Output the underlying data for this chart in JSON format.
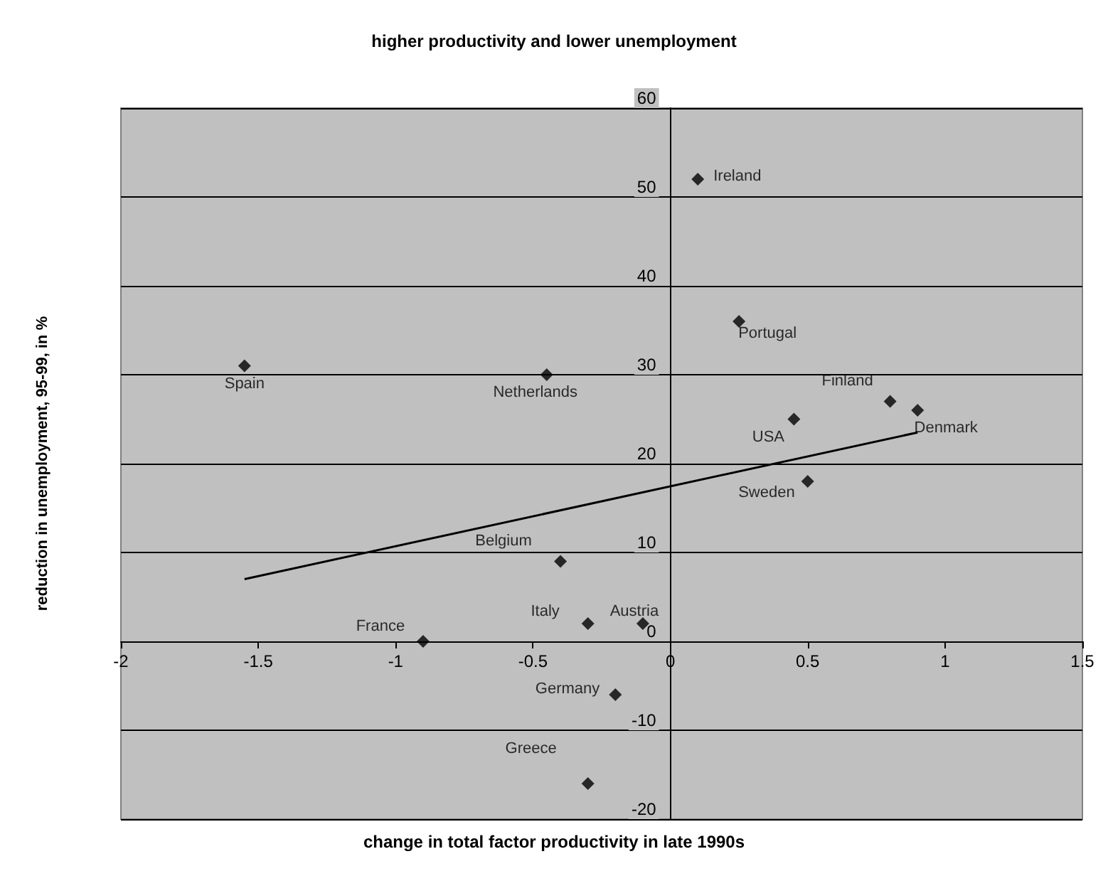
{
  "chart_data": {
    "type": "scatter",
    "title": "higher productivity and lower unemployment",
    "xlabel": "change in total factor productivity in late 1990s",
    "ylabel": "reduction in unemployment, 95-99, in %",
    "xlim": [
      -2,
      1.5
    ],
    "xticks": [
      -2,
      -1.5,
      -1,
      -0.5,
      0,
      0.5,
      1,
      1.5
    ],
    "ylim": [
      -20,
      60
    ],
    "yticks": [
      -20,
      -10,
      0,
      10,
      20,
      30,
      40,
      50,
      60
    ],
    "grid": "y",
    "marker": "diamond",
    "series": [
      {
        "type": "scatter",
        "color": "#000000",
        "x": [
          -1.55,
          -0.45,
          -0.4,
          -0.3,
          -0.1,
          -0.9,
          0.1,
          0.25,
          0.45,
          0.8,
          0.9,
          0.5,
          -0.2,
          -0.3
        ],
        "values": [
          31,
          30,
          9,
          2,
          2,
          0,
          52,
          36,
          25,
          27,
          26,
          18,
          -6,
          -16
        ]
      },
      {
        "type": "line",
        "color": "#000000",
        "marker": "none",
        "x": [
          -1.55,
          0.9
        ],
        "values": [
          7,
          23.5
        ]
      }
    ],
    "annotations": [
      {
        "text": "Spain",
        "x": -1.55,
        "y": 31
      },
      {
        "text": "Netherlands",
        "x": -0.45,
        "y": 30
      },
      {
        "text": "Belgium",
        "x": -0.4,
        "y": 9
      },
      {
        "text": "Italy",
        "x": -0.3,
        "y": 2
      },
      {
        "text": "Austria",
        "x": -0.1,
        "y": 2
      },
      {
        "text": "France",
        "x": -0.9,
        "y": 0
      },
      {
        "text": "Ireland",
        "x": 0.1,
        "y": 52
      },
      {
        "text": "Portugal",
        "x": 0.25,
        "y": 36
      },
      {
        "text": "USA",
        "x": 0.45,
        "y": 25
      },
      {
        "text": "Finland",
        "x": 0.8,
        "y": 27
      },
      {
        "text": "Denmark",
        "x": 0.9,
        "y": 26
      },
      {
        "text": "Sweden",
        "x": 0.5,
        "y": 18
      },
      {
        "text": "Germany",
        "x": -0.2,
        "y": -6
      },
      {
        "text": "Greece",
        "x": -0.3,
        "y": -16
      }
    ]
  }
}
